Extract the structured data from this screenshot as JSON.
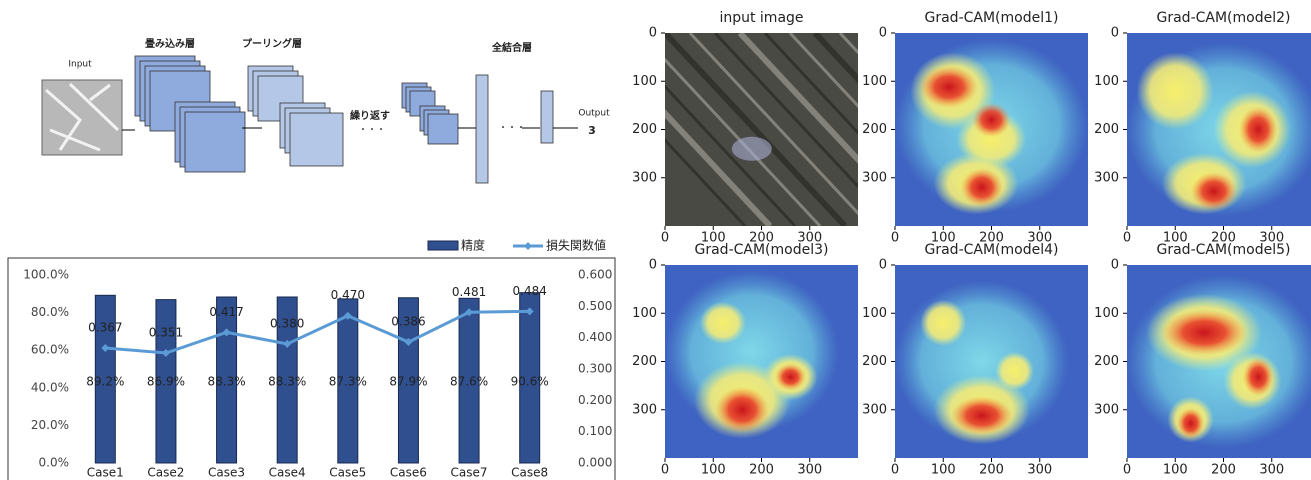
{
  "diagram": {
    "input": "Input",
    "conv": "畳み込み層",
    "pool": "プーリング層",
    "repeat": "繰り返す",
    "fc": "全結合層",
    "output": "Output",
    "output_value": "3"
  },
  "chart_data": [
    {
      "type": "bar-line",
      "categories": [
        "Case1",
        "Case2",
        "Case3",
        "Case4",
        "Case5",
        "Case6",
        "Case7",
        "Case8"
      ],
      "series": [
        {
          "name": "精度",
          "color": "#2f4f8f",
          "values": [
            89.2,
            86.9,
            88.3,
            88.3,
            87.3,
            87.9,
            87.6,
            90.6
          ],
          "value_labels": [
            "89.2%",
            "86.9%",
            "88.3%",
            "88.3%",
            "87.3%",
            "87.9%",
            "87.6%",
            "90.6%"
          ]
        },
        {
          "name": "損失関数値",
          "color": "#5b9bd5",
          "axis": "y2",
          "values": [
            0.367,
            0.351,
            0.417,
            0.38,
            0.47,
            0.386,
            0.481,
            0.484
          ],
          "value_labels": [
            "0.367",
            "0.351",
            "0.417",
            "0.380",
            "0.470",
            "0.386",
            "0.481",
            "0.484"
          ]
        }
      ],
      "ylim": [
        0,
        100
      ],
      "yticks": [
        {
          "value": 0,
          "label": "0.0%"
        },
        {
          "value": 20,
          "label": "20.0%"
        },
        {
          "value": 40,
          "label": "40.0%"
        },
        {
          "value": 60,
          "label": "60.0%"
        },
        {
          "value": 80,
          "label": "80.0%"
        },
        {
          "value": 100,
          "label": "100.0%"
        }
      ],
      "y2lim": [
        0,
        0.6
      ],
      "y2ticks": [
        {
          "value": 0,
          "label": "0.000"
        },
        {
          "value": 0.1,
          "label": "0.100"
        },
        {
          "value": 0.2,
          "label": "0.200"
        },
        {
          "value": 0.3,
          "label": "0.300"
        },
        {
          "value": 0.4,
          "label": "0.400"
        },
        {
          "value": 0.5,
          "label": "0.500"
        },
        {
          "value": 0.6,
          "label": "0.600"
        }
      ],
      "legend": "top-right"
    },
    {
      "type": "image",
      "title": "input image",
      "xlim": [
        0,
        400
      ],
      "ylim": [
        400,
        0
      ],
      "xticks": [
        0,
        100,
        200,
        300
      ],
      "yticks": [
        0,
        100,
        200,
        300
      ]
    },
    {
      "type": "heatmap",
      "title": "Grad-CAM(model1)",
      "xlim": [
        0,
        400
      ],
      "ylim": [
        400,
        0
      ],
      "xticks": [
        0,
        100,
        200,
        300
      ],
      "yticks": [
        0,
        100,
        200,
        300
      ]
    },
    {
      "type": "heatmap",
      "title": "Grad-CAM(model2)",
      "xlim": [
        0,
        400
      ],
      "ylim": [
        400,
        0
      ],
      "xticks": [
        0,
        100,
        200,
        300
      ],
      "yticks": [
        0,
        100,
        200,
        300
      ]
    },
    {
      "type": "heatmap",
      "title": "Grad-CAM(model3)",
      "xlim": [
        0,
        400
      ],
      "ylim": [
        400,
        0
      ],
      "xticks": [
        0,
        100,
        200,
        300
      ],
      "yticks": [
        0,
        100,
        200,
        300
      ]
    },
    {
      "type": "heatmap",
      "title": "Grad-CAM(model4)",
      "xlim": [
        0,
        400
      ],
      "ylim": [
        400,
        0
      ],
      "xticks": [
        0,
        100,
        200,
        300
      ],
      "yticks": [
        0,
        100,
        200,
        300
      ]
    },
    {
      "type": "heatmap",
      "title": "Grad-CAM(model5)",
      "xlim": [
        0,
        400
      ],
      "ylim": [
        400,
        0
      ],
      "xticks": [
        0,
        100,
        200,
        300
      ],
      "yticks": [
        0,
        100,
        200,
        300
      ]
    }
  ]
}
